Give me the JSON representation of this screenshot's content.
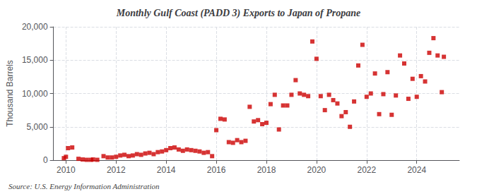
{
  "chart_data": {
    "type": "scatter",
    "title": "Monthly Gulf Coast (PADD 3) Exports to Japan of Propane",
    "ylabel": "Thousand Barrels",
    "annotation": "Source: U.S. Energy Information Administration",
    "color": "#cc0000",
    "marker": "square",
    "grid": true,
    "xlim": [
      2009.5,
      2025.7
    ],
    "xticks": [
      2010,
      2012,
      2014,
      2016,
      2018,
      2020,
      2022,
      2024
    ],
    "ylim": [
      0,
      20000
    ],
    "yticks": [
      0,
      {
        "value": 5000,
        "label": "5,000"
      },
      {
        "value": 10000,
        "label": "10,000"
      },
      {
        "value": 15000,
        "label": "15,000"
      },
      {
        "value": 20000,
        "label": "20,000"
      }
    ],
    "x": [
      2009.917,
      2010.0,
      2010.083,
      2010.25,
      2010.5,
      2010.667,
      2010.833,
      2011.0,
      2011.083,
      2011.25,
      2011.5,
      2011.667,
      2011.833,
      2012.0,
      2012.167,
      2012.333,
      2012.5,
      2012.667,
      2012.833,
      2013.0,
      2013.167,
      2013.333,
      2013.5,
      2013.667,
      2013.833,
      2014.0,
      2014.167,
      2014.333,
      2014.5,
      2014.667,
      2014.833,
      2015.0,
      2015.167,
      2015.333,
      2015.5,
      2015.667,
      2015.833,
      2016.0,
      2016.167,
      2016.333,
      2016.5,
      2016.667,
      2016.833,
      2017.0,
      2017.167,
      2017.333,
      2017.5,
      2017.667,
      2017.833,
      2018.0,
      2018.167,
      2018.333,
      2018.5,
      2018.667,
      2018.833,
      2019.0,
      2019.167,
      2019.333,
      2019.5,
      2019.667,
      2019.833,
      2020.0,
      2020.167,
      2020.333,
      2020.5,
      2020.667,
      2020.833,
      2021.0,
      2021.167,
      2021.333,
      2021.5,
      2021.667,
      2021.833,
      2022.0,
      2022.167,
      2022.333,
      2022.5,
      2022.667,
      2022.833,
      2023.0,
      2023.167,
      2023.333,
      2023.5,
      2023.667,
      2023.833,
      2024.0,
      2024.167,
      2024.333,
      2024.5,
      2024.667,
      2024.833,
      2025.0,
      2025.083
    ],
    "values": [
      300,
      500,
      1800,
      1900,
      200,
      100,
      50,
      50,
      100,
      50,
      600,
      400,
      400,
      500,
      700,
      800,
      600,
      700,
      900,
      800,
      1000,
      1100,
      900,
      1200,
      1300,
      1500,
      1800,
      1900,
      1600,
      1400,
      1600,
      1500,
      1400,
      1300,
      1100,
      1200,
      600,
      4500,
      6200,
      6100,
      2700,
      2600,
      3000,
      2700,
      2900,
      8000,
      5800,
      6000,
      5400,
      5600,
      8400,
      9800,
      4600,
      8200,
      8200,
      9800,
      12000,
      10000,
      9800,
      9600,
      17800,
      15200,
      9600,
      7500,
      9800,
      9000,
      8500,
      6600,
      7200,
      5000,
      8800,
      14200,
      17300,
      9500,
      10000,
      13000,
      6900,
      9900,
      13200,
      6800,
      9700,
      15700,
      14500,
      9200,
      12200,
      9500,
      12600,
      11800,
      16100,
      18300,
      15700,
      10200,
      15500
    ]
  }
}
